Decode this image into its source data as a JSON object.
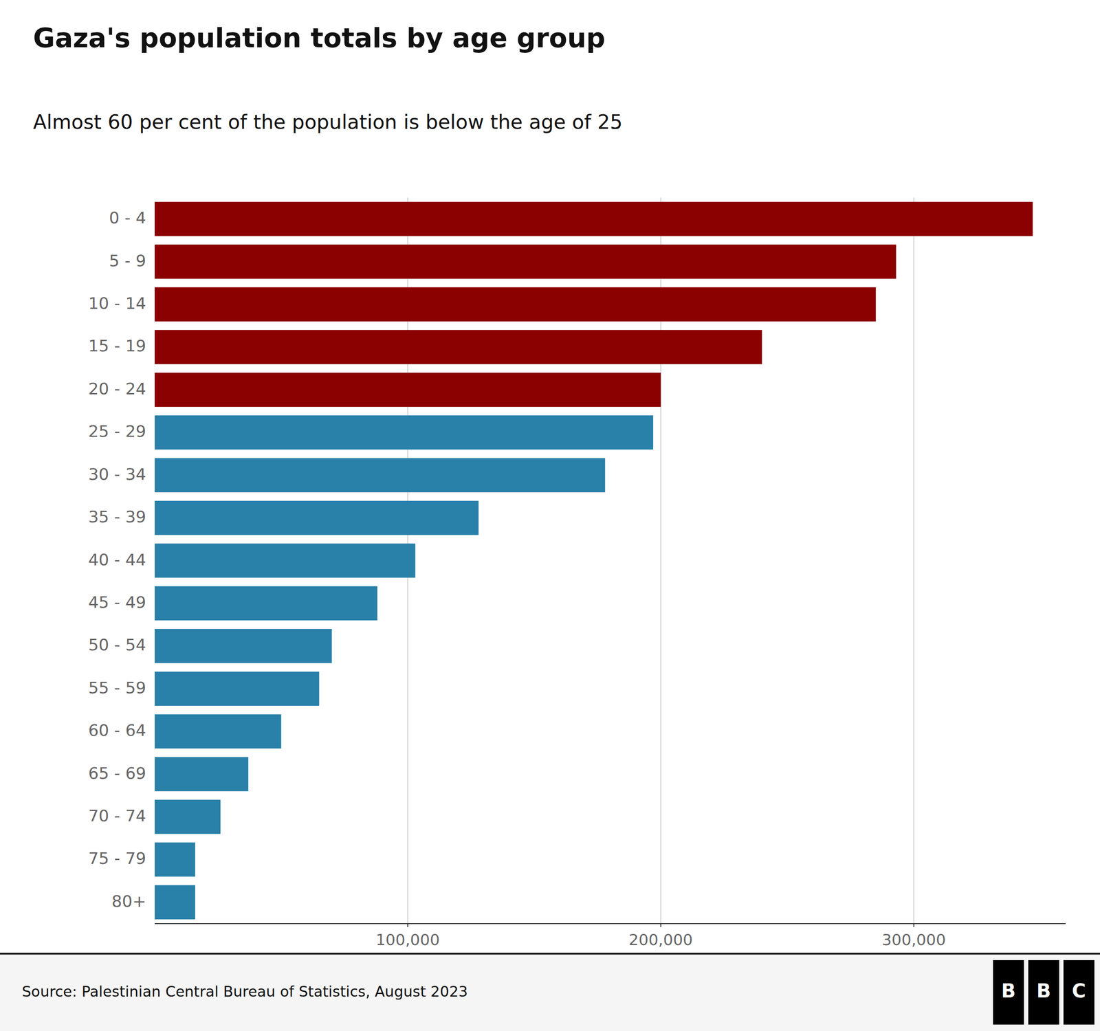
{
  "chart_data": {
    "type": "bar",
    "orientation": "horizontal",
    "title": "Gaza's population totals by age group",
    "subtitle": "Almost 60 per cent of the population is below the age of 25",
    "categories": [
      "0 - 4",
      "5 - 9",
      "10 - 14",
      "15 - 19",
      "20 - 24",
      "25 - 29",
      "30 - 34",
      "35 - 39",
      "40 - 44",
      "45 - 49",
      "50 - 54",
      "55 - 59",
      "60 - 64",
      "65 - 69",
      "70 - 74",
      "75 - 79",
      "80+"
    ],
    "values": [
      347000,
      293000,
      285000,
      240000,
      200000,
      197000,
      178000,
      128000,
      103000,
      88000,
      70000,
      65000,
      50000,
      37000,
      26000,
      16000,
      16000
    ],
    "colors": [
      "#8B0000",
      "#8B0000",
      "#8B0000",
      "#8B0000",
      "#8B0000",
      "#2980A8",
      "#2980A8",
      "#2980A8",
      "#2980A8",
      "#2980A8",
      "#2980A8",
      "#2980A8",
      "#2980A8",
      "#2980A8",
      "#2980A8",
      "#2980A8",
      "#2980A8"
    ],
    "xlim": [
      0,
      360000
    ],
    "xticks": [
      {
        "value": 100000,
        "label": "100,000"
      },
      {
        "value": 200000,
        "label": "200,000"
      },
      {
        "value": 300000,
        "label": "300,000"
      }
    ],
    "grid": true,
    "source": "Source: Palestinian Central Bureau of Statistics, August 2023",
    "logo": "BBC"
  }
}
